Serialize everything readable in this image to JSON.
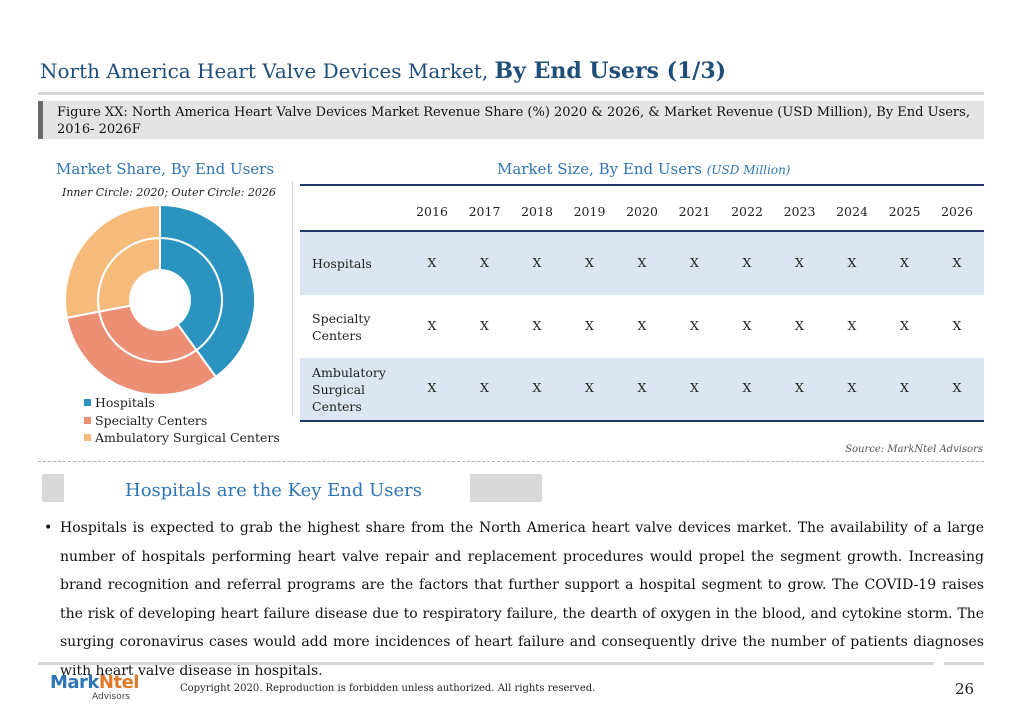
{
  "title": {
    "prefix": "North America Heart Valve Devices Market,",
    "bold": "By End Users (1/3)"
  },
  "figure_caption": "Figure XX: North America Heart Valve Devices Market Revenue Share (%) 2020 & 2026, & Market Revenue (USD Million), By End Users, 2016- 2026F",
  "market_share": {
    "heading": "Market Share, By End Users",
    "note": "Inner Circle: 2020; Outer Circle: 2026",
    "legend": [
      {
        "label": "Hospitals",
        "color": "#2a93bf"
      },
      {
        "label": "Specialty Centers",
        "color": "#ec8f75"
      },
      {
        "label": "Ambulatory Surgical Centers",
        "color": "#f6bb7b"
      }
    ]
  },
  "chart_data": {
    "type": "pie",
    "title": "Market Share, By End Users",
    "subtitle": "Inner Circle: 2020; Outer Circle: 2026",
    "categories": [
      "Hospitals",
      "Specialty Centers",
      "Ambulatory Surgical Centers"
    ],
    "series": [
      {
        "name": "2020",
        "values": [
          40,
          32,
          28
        ]
      },
      {
        "name": "2026",
        "values": [
          40,
          32,
          28
        ]
      }
    ],
    "legend_position": "bottom-left"
  },
  "market_size": {
    "heading": "Market Size, By End Users",
    "unit": "(USD Million)",
    "years": [
      "2016",
      "2017",
      "2018",
      "2019",
      "2020",
      "2021",
      "2022",
      "2023",
      "2024",
      "2025",
      "2026"
    ],
    "rows": [
      {
        "label_lines": [
          "Hospitals"
        ],
        "values": [
          "X",
          "X",
          "X",
          "X",
          "X",
          "X",
          "X",
          "X",
          "X",
          "X",
          "X"
        ]
      },
      {
        "label_lines": [
          "Specialty",
          "Centers"
        ],
        "values": [
          "X",
          "X",
          "X",
          "X",
          "X",
          "X",
          "X",
          "X",
          "X",
          "X",
          "X"
        ]
      },
      {
        "label_lines": [
          "Ambulatory",
          "Surgical",
          "Centers"
        ],
        "values": [
          "X",
          "X",
          "X",
          "X",
          "X",
          "X",
          "X",
          "X",
          "X",
          "X",
          "X"
        ]
      }
    ]
  },
  "source": "Source: MarkNtel Advisors",
  "key_title": "Hospitals are the Key End Users",
  "bullet": "•",
  "paragraph": "Hospitals is expected to grab the highest share from the North America heart valve devices market. The availability of a large number of hospitals performing heart valve repair and replacement procedures would propel the segment growth. Increasing brand recognition and referral programs are the factors that further support a hospital segment to grow. The COVID-19 raises the risk of developing heart failure disease due to respiratory failure, the dearth of oxygen in the blood, and cytokine storm. The surging coronavirus cases would add more incidences of heart failure and consequently drive the number of patients diagnoses with heart valve disease in hospitals.",
  "footer": {
    "logo_main_1": "Mark",
    "logo_main_2": "Ntel",
    "logo_sub": "Advisors",
    "copyright": "Copyright 2020. Reproduction is forbidden unless authorized. All rights reserved.",
    "page_number": "26"
  }
}
